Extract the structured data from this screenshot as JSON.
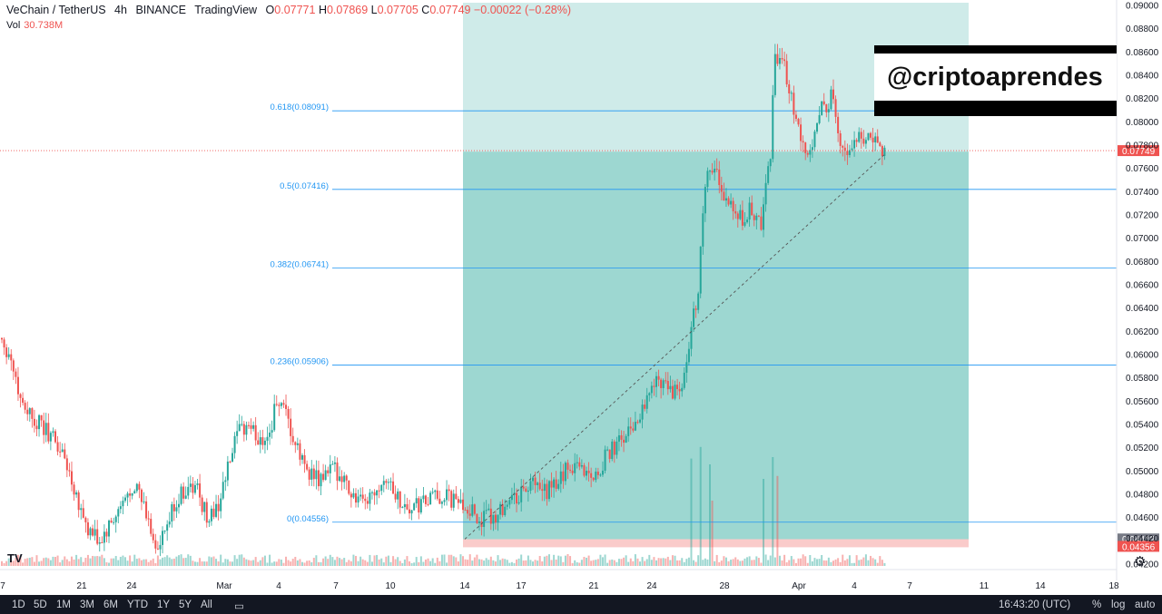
{
  "header": {
    "symbol": "VeChain / TetherUS",
    "interval": "4h",
    "exchange": "BINANCE",
    "brand": "TradingView",
    "o_label": "O",
    "o_value": "0.07771",
    "h_label": "H",
    "h_value": "0.07869",
    "l_label": "L",
    "l_value": "0.07705",
    "c_label": "C",
    "c_value": "0.07749",
    "change": "−0.00022 (−0.28%)",
    "vol_label": "Vol",
    "vol_value": "30.738M"
  },
  "watermark": "@criptoaprendes",
  "bottom_bar": {
    "ranges": [
      "1D",
      "5D",
      "1M",
      "3M",
      "6M",
      "YTD",
      "1Y",
      "5Y",
      "All"
    ],
    "clock": "16:43:20 (UTC)",
    "options": [
      "%",
      "log",
      "auto"
    ]
  },
  "colors": {
    "up": "#26a69a",
    "down": "#ef5350",
    "fib_line": "#2196f3",
    "fib_label": "#2196f3",
    "profit_zone": "#26a69a",
    "loss_zone": "#ef5350"
  },
  "chart_data": {
    "type": "candlestick",
    "y_axis_ticks": [
      "0.09000",
      "0.08800",
      "0.08600",
      "0.08400",
      "0.08200",
      "0.08000",
      "0.07800",
      "0.07600",
      "0.07400",
      "0.07200",
      "0.07000",
      "0.06800",
      "0.06600",
      "0.06400",
      "0.06200",
      "0.06000",
      "0.05800",
      "0.05600",
      "0.05400",
      "0.05200",
      "0.05000",
      "0.04800",
      "0.04600",
      "0.04420",
      "0.04200"
    ],
    "ylim": [
      0.0418,
      0.0902
    ],
    "x_axis_ticks": [
      "7",
      "21",
      "24",
      "Mar",
      "4",
      "7",
      "10",
      "14",
      "17",
      "21",
      "24",
      "28",
      "Apr",
      "4",
      "7",
      "11",
      "14",
      "18"
    ],
    "price_labels": {
      "last": "0.07749",
      "stop_a": "0.04412",
      "stop_b": "0.04356"
    },
    "fib_levels": [
      {
        "label": "0.618(0.08091)",
        "price": 0.08091
      },
      {
        "label": "0.5(0.07416)",
        "price": 0.07416
      },
      {
        "label": "0.382(0.06741)",
        "price": 0.06741
      },
      {
        "label": "0.236(0.05906)",
        "price": 0.05906
      },
      {
        "label": "0(0.04556)",
        "price": 0.04556
      }
    ],
    "position": {
      "entry": 0.0774,
      "target": 0.0902,
      "stop": 0.0441
    },
    "close_path": [
      [
        0,
        0.0614
      ],
      [
        4,
        0.0596
      ],
      [
        8,
        0.0562
      ],
      [
        12,
        0.055
      ],
      [
        16,
        0.054
      ],
      [
        22,
        0.0528
      ],
      [
        27,
        0.051
      ],
      [
        32,
        0.048
      ],
      [
        37,
        0.0448
      ],
      [
        42,
        0.0438
      ],
      [
        46,
        0.045
      ],
      [
        52,
        0.047
      ],
      [
        57,
        0.049
      ],
      [
        62,
        0.0462
      ],
      [
        67,
        0.043
      ],
      [
        70,
        0.0446
      ],
      [
        74,
        0.047
      ],
      [
        79,
        0.0485
      ],
      [
        84,
        0.0484
      ],
      [
        88,
        0.046
      ],
      [
        92,
        0.0465
      ],
      [
        97,
        0.05
      ],
      [
        101,
        0.053
      ],
      [
        106,
        0.054
      ],
      [
        110,
        0.0526
      ],
      [
        115,
        0.0532
      ],
      [
        118,
        0.056
      ],
      [
        122,
        0.0545
      ],
      [
        126,
        0.052
      ],
      [
        130,
        0.0505
      ],
      [
        136,
        0.049
      ],
      [
        141,
        0.05
      ],
      [
        146,
        0.0498
      ],
      [
        150,
        0.048
      ],
      [
        155,
        0.047
      ],
      [
        160,
        0.0485
      ],
      [
        165,
        0.0495
      ],
      [
        170,
        0.0476
      ],
      [
        175,
        0.0466
      ],
      [
        180,
        0.047
      ],
      [
        185,
        0.0476
      ],
      [
        190,
        0.0478
      ],
      [
        195,
        0.0472
      ],
      [
        200,
        0.0469
      ],
      [
        203,
        0.046
      ],
      [
        207,
        0.0458
      ],
      [
        212,
        0.0462
      ],
      [
        217,
        0.0474
      ],
      [
        222,
        0.0478
      ],
      [
        227,
        0.0488
      ],
      [
        232,
        0.048
      ],
      [
        237,
        0.0486
      ],
      [
        242,
        0.05
      ],
      [
        247,
        0.0508
      ],
      [
        250,
        0.05
      ],
      [
        255,
        0.0495
      ],
      [
        259,
        0.051
      ],
      [
        263,
        0.052
      ],
      [
        267,
        0.0528
      ],
      [
        272,
        0.054
      ],
      [
        276,
        0.056
      ],
      [
        280,
        0.0575
      ],
      [
        284,
        0.058
      ],
      [
        288,
        0.0565
      ],
      [
        292,
        0.057
      ],
      [
        295,
        0.06
      ],
      [
        297,
        0.064
      ],
      [
        299,
        0.065
      ],
      [
        301,
        0.072
      ],
      [
        303,
        0.076
      ],
      [
        306,
        0.0762
      ],
      [
        310,
        0.0735
      ],
      [
        314,
        0.072
      ],
      [
        318,
        0.0715
      ],
      [
        322,
        0.0725
      ],
      [
        326,
        0.071
      ],
      [
        330,
        0.077
      ],
      [
        332,
        0.086
      ],
      [
        335,
        0.0852
      ],
      [
        338,
        0.083
      ],
      [
        341,
        0.08
      ],
      [
        345,
        0.077
      ],
      [
        349,
        0.079
      ],
      [
        352,
        0.081
      ],
      [
        356,
        0.082
      ],
      [
        360,
        0.0785
      ],
      [
        364,
        0.0775
      ],
      [
        368,
        0.079
      ],
      [
        372,
        0.0785
      ],
      [
        376,
        0.078
      ],
      [
        379,
        0.0775
      ]
    ],
    "volume_spikes": {
      "296": 0.74,
      "300": 0.82,
      "304": 0.7,
      "305": 0.45,
      "327": 0.6,
      "331": 0.75,
      "333": 0.62
    }
  }
}
